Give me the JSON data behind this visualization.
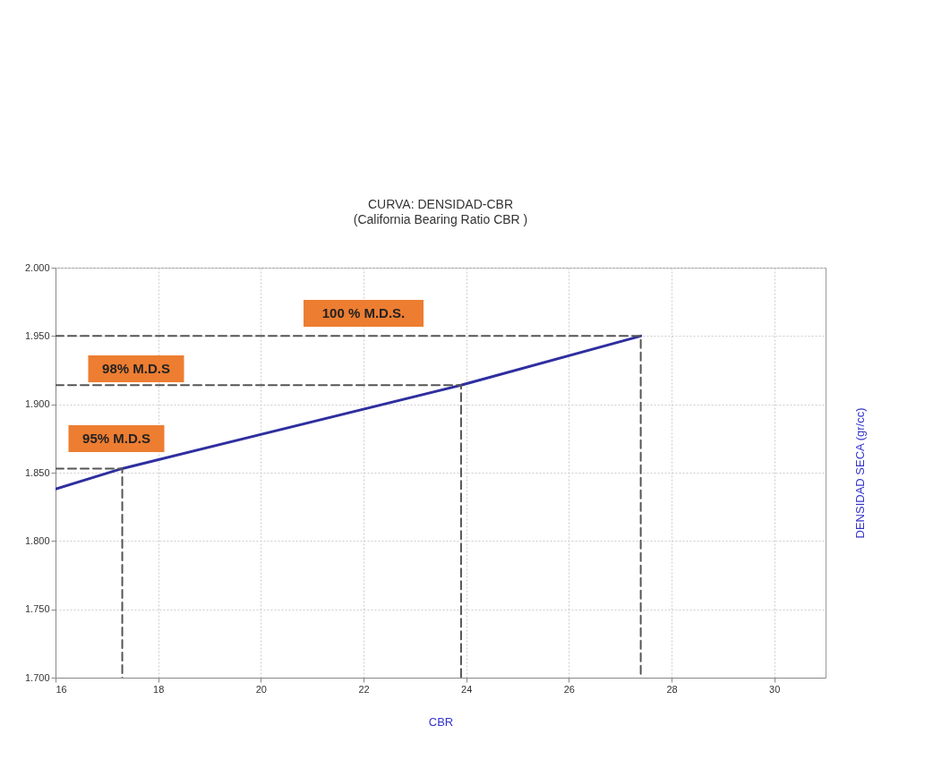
{
  "chart_data": {
    "type": "line",
    "title": "CURVA: DENSIDAD-CBR",
    "subtitle": "(California Bearing Ratio CBR )",
    "xlabel": "CBR",
    "ylabel": "DENSIDAD SECA (gr/cc)",
    "xlim": [
      16,
      31
    ],
    "xticks": [
      16,
      18,
      20,
      22,
      24,
      26,
      28,
      30
    ],
    "ylim": [
      1.7,
      2.0
    ],
    "yticks": [
      {
        "value": 1.7,
        "label": "1.700"
      },
      {
        "value": 1.75,
        "label": "1.750"
      },
      {
        "value": 1.8,
        "label": "1.800"
      },
      {
        "value": 1.85,
        "label": "1.850"
      },
      {
        "value": 1.9,
        "label": "1.900"
      },
      {
        "value": 1.95,
        "label": "1.950"
      },
      {
        "value": 2.0,
        "label": "2.000"
      }
    ],
    "grid": true,
    "series": [
      {
        "color": "#2e2ea0",
        "x": [
          16,
          17.3,
          23.9,
          27.4
        ],
        "values": [
          1.838,
          1.853,
          1.914,
          1.95
        ],
        "line_style": "solid"
      },
      {
        "color": "#555555",
        "x": [
          16,
          17.3,
          17.3
        ],
        "values": [
          1.853,
          1.853,
          1.7
        ],
        "line_style": "dashed"
      },
      {
        "color": "#555555",
        "x": [
          16,
          23.9,
          23.9
        ],
        "values": [
          1.914,
          1.914,
          1.7
        ],
        "line_style": "dashed"
      },
      {
        "color": "#555555",
        "x": [
          16,
          27.4,
          27.4
        ],
        "values": [
          1.95,
          1.95,
          1.7
        ],
        "line_style": "dashed"
      }
    ],
    "annotations": [
      "100 % M.D.S.",
      "98% M.D.S",
      "95% M.D.S"
    ]
  }
}
